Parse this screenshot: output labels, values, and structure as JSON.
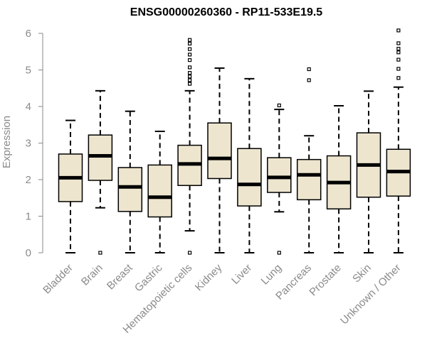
{
  "chart_data": {
    "type": "boxplot",
    "title": "ENSG00000260360 - RP11-533E19.5",
    "xlabel": "",
    "ylabel": "Expression",
    "ylim": [
      0,
      6
    ],
    "yticks": [
      0,
      1,
      2,
      3,
      4,
      5,
      6
    ],
    "colors": {
      "box_fill": "#ede5ce",
      "stroke": "#000000",
      "axis": "#8a8a8a"
    },
    "categories": [
      "Bladder",
      "Brain",
      "Breast",
      "Gastric",
      "Hematopoietic cells",
      "Kidney",
      "Liver",
      "Lung",
      "Pancreas",
      "Prostate",
      "Skin",
      "Unknown / Other"
    ],
    "boxes": [
      {
        "label": "Bladder",
        "min": 0.0,
        "q1": 1.4,
        "median": 2.05,
        "q3": 2.7,
        "max": 3.62,
        "outliers": []
      },
      {
        "label": "Brain",
        "min": 1.23,
        "q1": 1.98,
        "median": 2.65,
        "q3": 3.22,
        "max": 4.43,
        "outliers": [
          0.0
        ]
      },
      {
        "label": "Breast",
        "min": 0.0,
        "q1": 1.13,
        "median": 1.8,
        "q3": 2.33,
        "max": 3.87,
        "outliers": []
      },
      {
        "label": "Gastric",
        "min": 0.0,
        "q1": 0.98,
        "median": 1.52,
        "q3": 2.4,
        "max": 3.32,
        "outliers": []
      },
      {
        "label": "Hematopoietic cells",
        "min": 0.6,
        "q1": 1.84,
        "median": 2.43,
        "q3": 2.94,
        "max": 4.43,
        "outliers": [
          0.0,
          4.62,
          4.72,
          4.82,
          4.92,
          5.07,
          5.27,
          5.42,
          5.57,
          5.72,
          5.82
        ]
      },
      {
        "label": "Kidney",
        "min": 0.0,
        "q1": 2.03,
        "median": 2.58,
        "q3": 3.55,
        "max": 5.05,
        "outliers": []
      },
      {
        "label": "Liver",
        "min": 0.0,
        "q1": 1.28,
        "median": 1.87,
        "q3": 2.85,
        "max": 4.76,
        "outliers": []
      },
      {
        "label": "Lung",
        "min": 1.12,
        "q1": 1.65,
        "median": 2.06,
        "q3": 2.6,
        "max": 3.92,
        "outliers": [
          0.0,
          4.03
        ]
      },
      {
        "label": "Pancreas",
        "min": 0.0,
        "q1": 1.45,
        "median": 2.13,
        "q3": 2.55,
        "max": 3.2,
        "outliers": [
          4.72,
          5.02
        ]
      },
      {
        "label": "Prostate",
        "min": 0.0,
        "q1": 1.2,
        "median": 1.92,
        "q3": 2.65,
        "max": 4.02,
        "outliers": []
      },
      {
        "label": "Skin",
        "min": 0.0,
        "q1": 1.52,
        "median": 2.4,
        "q3": 3.28,
        "max": 4.42,
        "outliers": []
      },
      {
        "label": "Unknown / Other",
        "min": 0.0,
        "q1": 1.55,
        "median": 2.22,
        "q3": 2.83,
        "max": 4.53,
        "outliers": [
          4.78,
          5.03,
          5.28,
          5.48,
          5.58,
          5.73,
          6.08
        ]
      }
    ]
  }
}
